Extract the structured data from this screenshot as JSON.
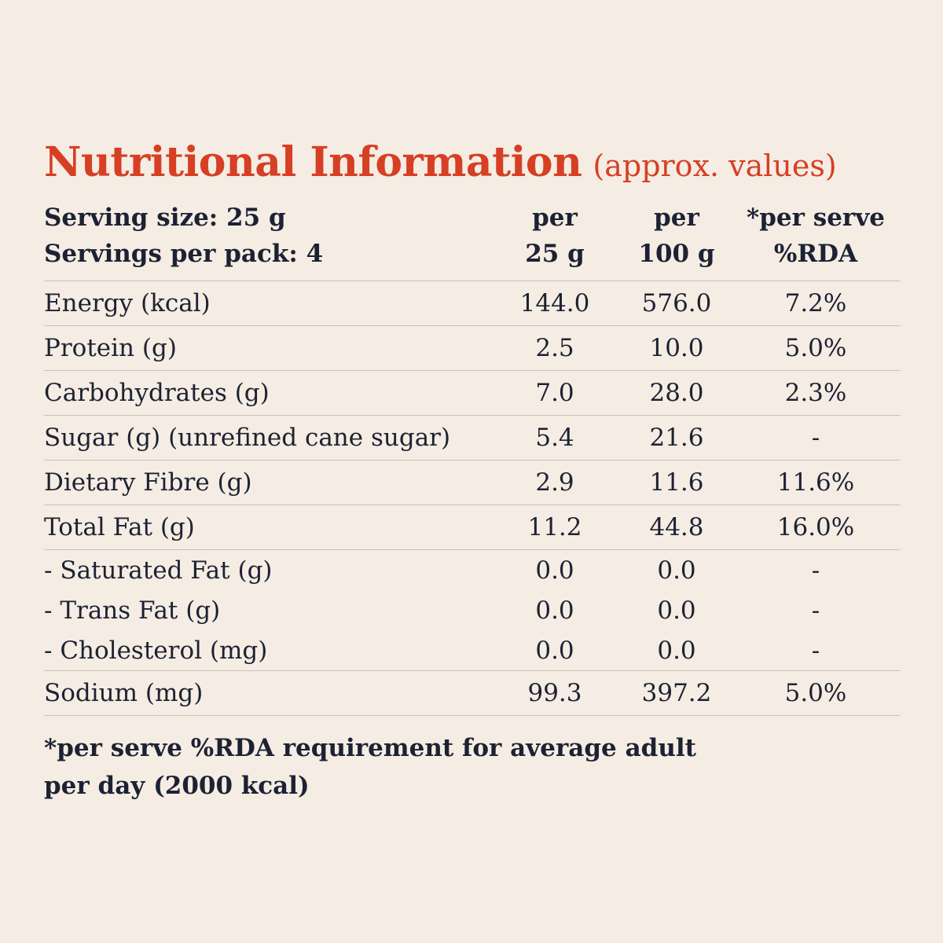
{
  "title": "Nutritional Information",
  "subtitle": "(approx. values)",
  "header": {
    "serving_size": "Serving size: 25 g",
    "servings_per_pack": "Servings per pack: 4",
    "col1_line1": "per",
    "col1_line2": "25 g",
    "col2_line1": "per",
    "col2_line2": "100 g",
    "col3_line1": "*per serve",
    "col3_line2": "%RDA"
  },
  "rows": [
    {
      "label": "Energy (kcal)",
      "per25": "144.0",
      "per100": "576.0",
      "rda": "7.2%"
    },
    {
      "label": "Protein (g)",
      "per25": "2.5",
      "per100": "10.0",
      "rda": "5.0%"
    },
    {
      "label": "Carbohydrates (g)",
      "per25": "7.0",
      "per100": "28.0",
      "rda": "2.3%"
    },
    {
      "label": "Sugar (g) (unrefined cane sugar)",
      "per25": "5.4",
      "per100": "21.6",
      "rda": "-"
    },
    {
      "label": "Dietary Fibre (g)",
      "per25": "2.9",
      "per100": "11.6",
      "rda": "11.6%"
    },
    {
      "label": "Total Fat (g)",
      "per25": "11.2",
      "per100": "44.8",
      "rda": "16.0%"
    },
    {
      "label": "- Saturated Fat (g)",
      "per25": "0.0",
      "per100": "0.0",
      "rda": "-"
    },
    {
      "label": "- Trans Fat (g)",
      "per25": "0.0",
      "per100": "0.0",
      "rda": "-"
    },
    {
      "label": "- Cholesterol (mg)",
      "per25": "0.0",
      "per100": "0.0",
      "rda": "-"
    },
    {
      "label": "Sodium (mg)",
      "per25": "99.3",
      "per100": "397.2",
      "rda": "5.0%"
    }
  ],
  "footnote_line1": "*per serve %RDA requirement for average adult",
  "footnote_line2": "per day (2000 kcal)",
  "colors": {
    "background": "#f5ece3",
    "title": "#d63f23",
    "text": "#1c2233",
    "rule": "#c9c2ba"
  }
}
